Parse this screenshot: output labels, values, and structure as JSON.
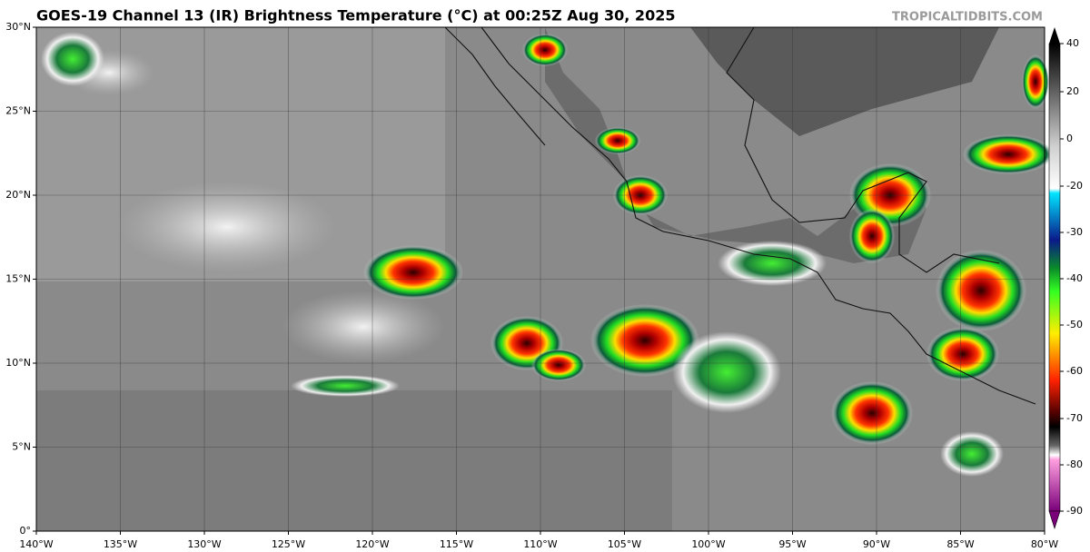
{
  "title": "GOES-19 Channel 13 (IR) Brightness Temperature (°C) at 00:25Z Aug 30, 2025",
  "watermark": "TROPICALTIDBITS.COM",
  "latitude_labels": [
    "30°N",
    "25°N",
    "20°N",
    "15°N",
    "10°N",
    "5°N",
    "0°"
  ],
  "longitude_labels": [
    "140°W",
    "135°W",
    "130°W",
    "125°W",
    "120°W",
    "115°W",
    "110°W",
    "105°W",
    "100°W",
    "95°W",
    "90°W",
    "85°W",
    "80°W"
  ],
  "colorbar": {
    "ticks": [
      40,
      20,
      0,
      -20,
      -30,
      -40,
      -50,
      -60,
      -70,
      -80,
      -90
    ]
  }
}
